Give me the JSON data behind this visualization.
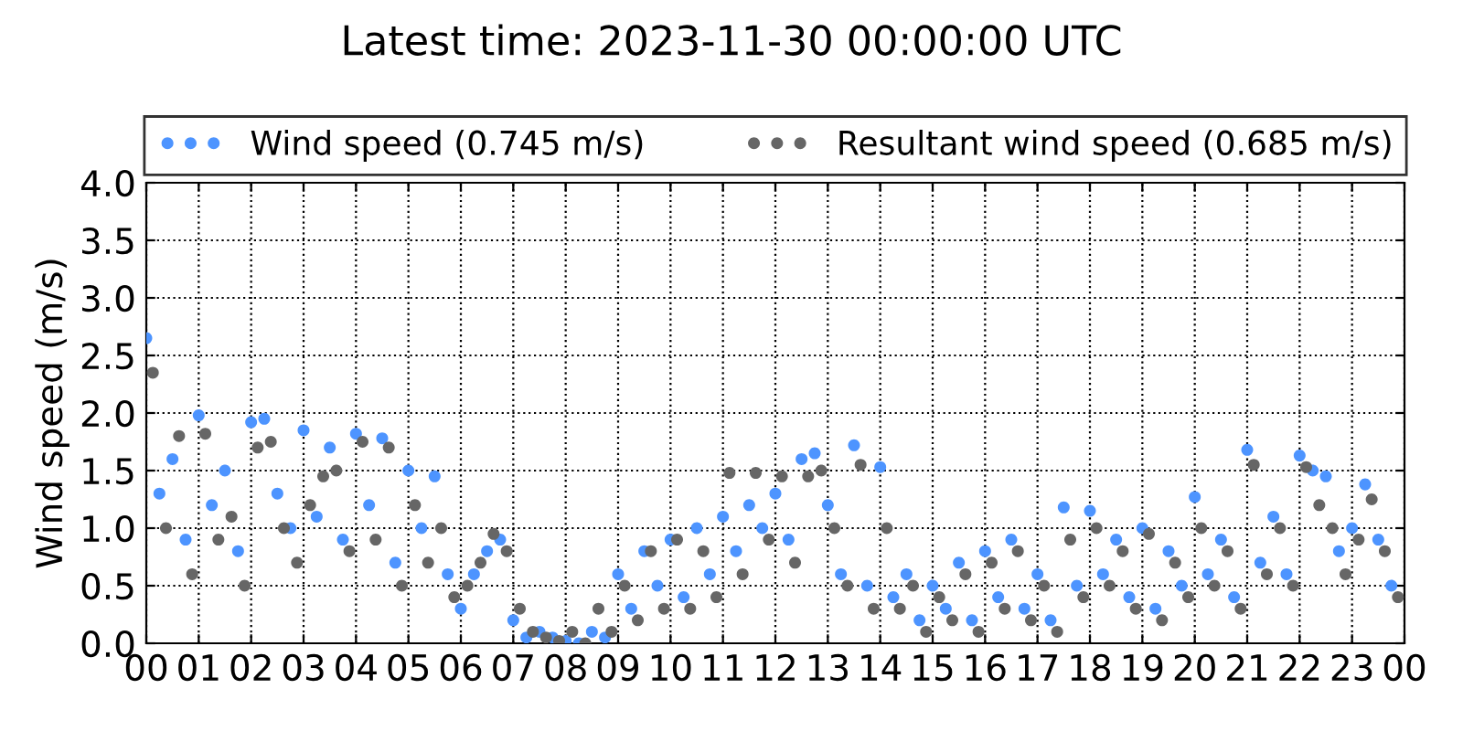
{
  "chart_data": {
    "type": "scatter",
    "title": "Latest time: 2023-11-30 00:00:00 UTC",
    "ylabel": "Wind speed (m/s)",
    "xlim": [
      0,
      24
    ],
    "ylim": [
      0,
      4.0
    ],
    "xticks": [
      {
        "value": 0,
        "label": "00"
      },
      {
        "value": 1,
        "label": "01"
      },
      {
        "value": 2,
        "label": "02"
      },
      {
        "value": 3,
        "label": "03"
      },
      {
        "value": 4,
        "label": "04"
      },
      {
        "value": 5,
        "label": "05"
      },
      {
        "value": 6,
        "label": "06"
      },
      {
        "value": 7,
        "label": "07"
      },
      {
        "value": 8,
        "label": "08"
      },
      {
        "value": 9,
        "label": "09"
      },
      {
        "value": 10,
        "label": "10"
      },
      {
        "value": 11,
        "label": "11"
      },
      {
        "value": 12,
        "label": "12"
      },
      {
        "value": 13,
        "label": "13"
      },
      {
        "value": 14,
        "label": "14"
      },
      {
        "value": 15,
        "label": "15"
      },
      {
        "value": 16,
        "label": "16"
      },
      {
        "value": 17,
        "label": "17"
      },
      {
        "value": 18,
        "label": "18"
      },
      {
        "value": 19,
        "label": "19"
      },
      {
        "value": 20,
        "label": "20"
      },
      {
        "value": 21,
        "label": "21"
      },
      {
        "value": 22,
        "label": "22"
      },
      {
        "value": 23,
        "label": "23"
      },
      {
        "value": 24,
        "label": "00"
      }
    ],
    "yticks": [
      {
        "value": 0,
        "label": "0.0"
      },
      {
        "value": 0.5,
        "label": "0.5"
      },
      {
        "value": 1,
        "label": "1.0"
      },
      {
        "value": 1.5,
        "label": "1.5"
      },
      {
        "value": 2,
        "label": "2.0"
      },
      {
        "value": 2.5,
        "label": "2.5"
      },
      {
        "value": 3,
        "label": "3.0"
      },
      {
        "value": 3.5,
        "label": "3.5"
      },
      {
        "value": 4,
        "label": "4.0"
      }
    ],
    "grid": true,
    "legend": "top",
    "marker": "circle",
    "series": [
      {
        "name": "Wind speed (0.745 m/s)",
        "color": "#4d94ff",
        "x": [
          0,
          0.25,
          0.5,
          0.75,
          1,
          1.25,
          1.5,
          1.75,
          2,
          2.25,
          2.5,
          2.75,
          3,
          3.25,
          3.5,
          3.75,
          4,
          4.25,
          4.5,
          4.75,
          5,
          5.25,
          5.5,
          5.75,
          6,
          6.25,
          6.5,
          6.75,
          7,
          7.25,
          7.5,
          7.75,
          8,
          8.25,
          8.5,
          8.75,
          9,
          9.25,
          9.5,
          9.75,
          10,
          10.25,
          10.5,
          10.75,
          11,
          11.25,
          11.5,
          11.75,
          12,
          12.25,
          12.5,
          12.75,
          13,
          13.25,
          13.5,
          13.75,
          14,
          14.25,
          14.5,
          14.75,
          15,
          15.25,
          15.5,
          15.75,
          16,
          16.25,
          16.5,
          16.75,
          17,
          17.25,
          17.5,
          17.75,
          18,
          18.25,
          18.5,
          18.75,
          19,
          19.25,
          19.5,
          19.75,
          20,
          20.25,
          20.5,
          20.75,
          21,
          21.25,
          21.5,
          21.75,
          22,
          22.25,
          22.5,
          22.75,
          23,
          23.25,
          23.5,
          23.75
        ],
        "values": [
          2.65,
          1.3,
          1.6,
          0.9,
          1.98,
          1.2,
          1.5,
          0.8,
          1.92,
          1.95,
          1.3,
          1.0,
          1.85,
          1.1,
          1.7,
          0.9,
          1.82,
          1.2,
          1.78,
          0.7,
          1.5,
          1.0,
          1.45,
          0.6,
          0.3,
          0.6,
          0.8,
          0.9,
          0.2,
          0.05,
          0.1,
          0.05,
          0.02,
          0.0,
          0.1,
          0.05,
          0.6,
          0.3,
          0.8,
          0.5,
          0.9,
          0.4,
          1.0,
          0.6,
          1.1,
          0.8,
          1.2,
          1.0,
          1.3,
          0.9,
          1.6,
          1.65,
          1.2,
          0.6,
          1.72,
          0.5,
          1.53,
          0.4,
          0.6,
          0.2,
          0.5,
          0.3,
          0.7,
          0.2,
          0.8,
          0.4,
          0.9,
          0.3,
          0.6,
          0.2,
          1.18,
          0.5,
          1.15,
          0.6,
          0.9,
          0.4,
          1.0,
          0.3,
          0.8,
          0.5,
          1.27,
          0.6,
          0.9,
          0.4,
          1.68,
          0.7,
          1.1,
          0.6,
          1.63,
          1.5,
          1.45,
          0.8,
          1.0,
          1.38,
          0.9,
          0.5
        ]
      },
      {
        "name": "Resultant wind speed (0.685 m/s)",
        "color": "#666666",
        "x": [
          0.125,
          0.375,
          0.625,
          0.875,
          1.125,
          1.375,
          1.625,
          1.875,
          2.125,
          2.375,
          2.625,
          2.875,
          3.125,
          3.375,
          3.625,
          3.875,
          4.125,
          4.375,
          4.625,
          4.875,
          5.125,
          5.375,
          5.625,
          5.875,
          6.125,
          6.375,
          6.625,
          6.875,
          7.125,
          7.375,
          7.625,
          7.875,
          8.125,
          8.375,
          8.625,
          8.875,
          9.125,
          9.375,
          9.625,
          9.875,
          10.125,
          10.375,
          10.625,
          10.875,
          11.125,
          11.375,
          11.625,
          11.875,
          12.125,
          12.375,
          12.625,
          12.875,
          13.125,
          13.375,
          13.625,
          13.875,
          14.125,
          14.375,
          14.625,
          14.875,
          15.125,
          15.375,
          15.625,
          15.875,
          16.125,
          16.375,
          16.625,
          16.875,
          17.125,
          17.375,
          17.625,
          17.875,
          18.125,
          18.375,
          18.625,
          18.875,
          19.125,
          19.375,
          19.625,
          19.875,
          20.125,
          20.375,
          20.625,
          20.875,
          21.125,
          21.375,
          21.625,
          21.875,
          22.125,
          22.375,
          22.625,
          22.875,
          23.125,
          23.375,
          23.625,
          23.875
        ],
        "values": [
          2.35,
          1.0,
          1.8,
          0.6,
          1.82,
          0.9,
          1.1,
          0.5,
          1.7,
          1.75,
          1.0,
          0.7,
          1.2,
          1.45,
          1.5,
          0.8,
          1.75,
          0.9,
          1.7,
          0.5,
          1.2,
          0.7,
          1.0,
          0.4,
          0.5,
          0.7,
          0.95,
          0.8,
          0.3,
          0.1,
          0.05,
          0.02,
          0.1,
          0.0,
          0.3,
          0.1,
          0.5,
          0.2,
          0.8,
          0.3,
          0.9,
          0.3,
          0.8,
          0.4,
          1.48,
          0.6,
          1.48,
          0.9,
          1.45,
          0.7,
          1.45,
          1.5,
          1.0,
          0.5,
          1.55,
          0.3,
          1.0,
          0.3,
          0.5,
          0.1,
          0.4,
          0.2,
          0.6,
          0.1,
          0.7,
          0.3,
          0.8,
          0.2,
          0.5,
          0.1,
          0.9,
          0.4,
          1.0,
          0.5,
          0.8,
          0.3,
          0.95,
          0.2,
          0.7,
          0.4,
          1.0,
          0.5,
          0.8,
          0.3,
          1.55,
          0.6,
          1.0,
          0.5,
          1.53,
          1.2,
          1.0,
          0.6,
          0.9,
          1.25,
          0.8,
          0.4
        ]
      }
    ]
  }
}
